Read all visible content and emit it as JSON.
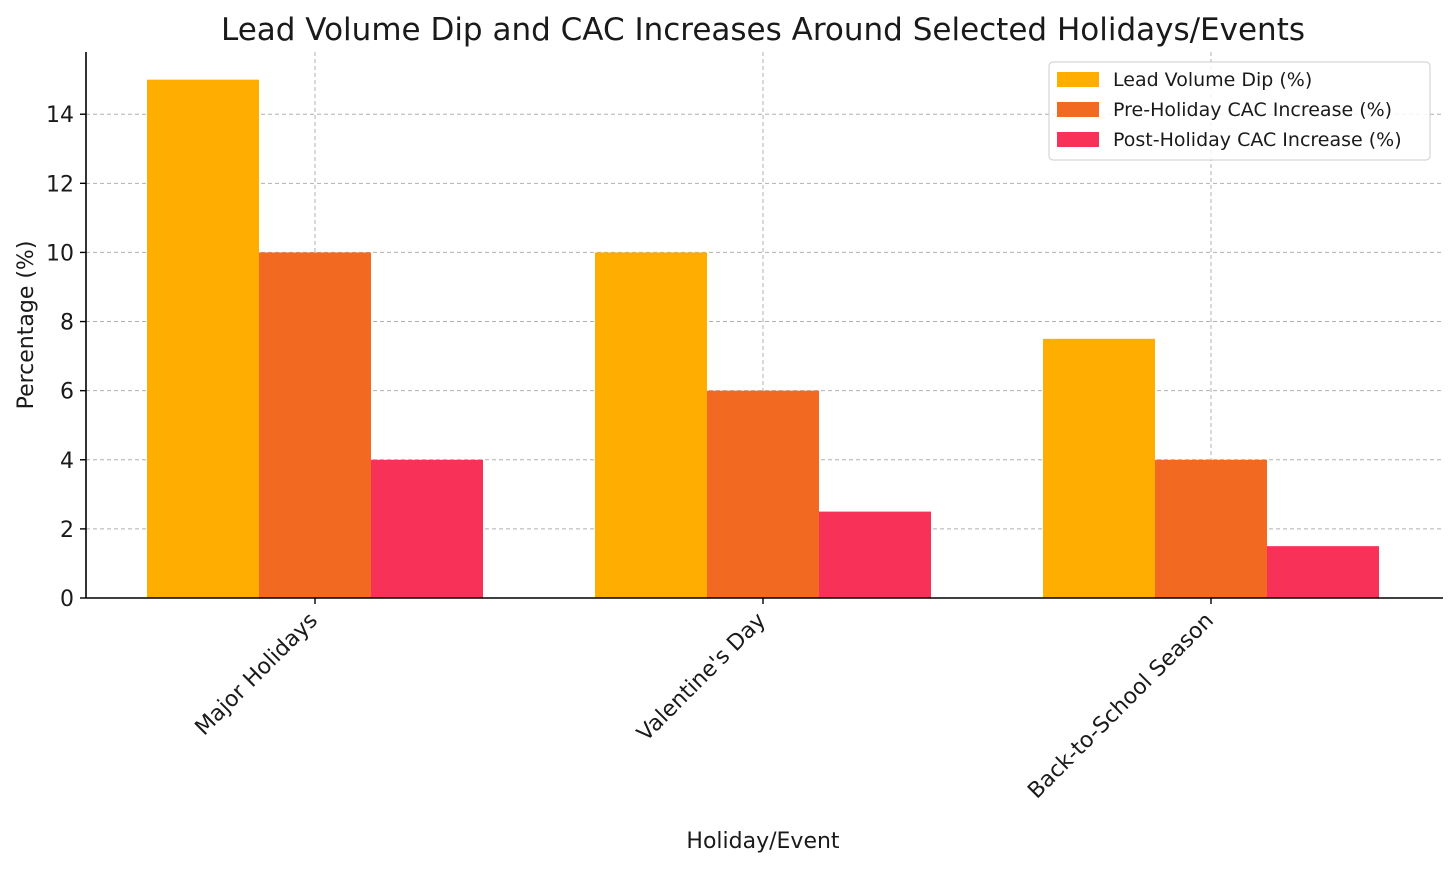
{
  "chart_data": {
    "type": "bar",
    "title": "Lead Volume Dip and CAC Increases Around Selected Holidays/Events",
    "xlabel": "Holiday/Event",
    "ylabel": "Percentage (%)",
    "categories": [
      "Major Holidays",
      "Valentine's Day",
      "Back-to-School Season"
    ],
    "series": [
      {
        "name": "Lead Volume Dip (%)",
        "color": "#FFAE00",
        "values": [
          15,
          10,
          7.5
        ]
      },
      {
        "name": "Pre-Holiday CAC Increase (%)",
        "color": "#F26A21",
        "values": [
          10,
          6,
          4
        ]
      },
      {
        "name": "Post-Holiday CAC Increase (%)",
        "color": "#F73157",
        "values": [
          4,
          2.5,
          1.5
        ]
      }
    ],
    "ylim": [
      0,
      15.8
    ],
    "yticks": [
      0,
      2,
      4,
      6,
      8,
      10,
      12,
      14
    ],
    "grid": true,
    "legend_position": "top-right"
  }
}
